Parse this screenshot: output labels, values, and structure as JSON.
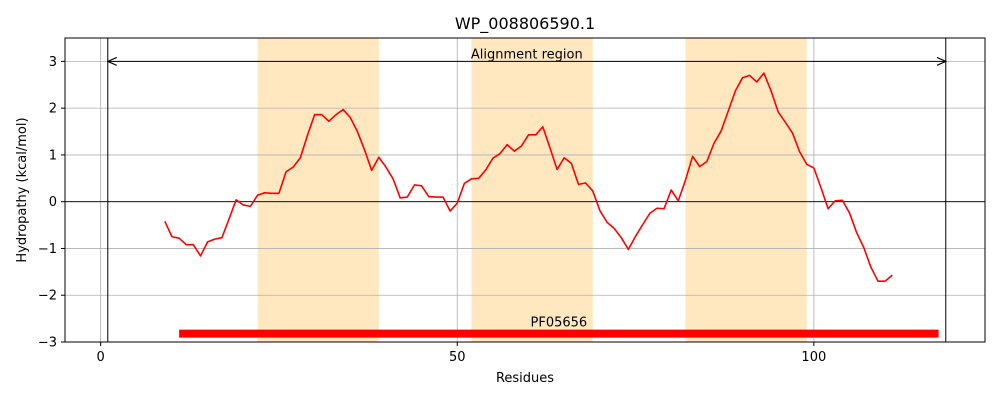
{
  "chart_data": {
    "type": "line",
    "title": "WP_008806590.1",
    "xlabel": "Residues",
    "ylabel": "Hydropathy (kcal/mol)",
    "xlim": [
      -5,
      124
    ],
    "ylim": [
      -3,
      3.5
    ],
    "xticks": [
      0,
      50,
      100
    ],
    "yticks": [
      -3,
      -2,
      -1,
      0,
      1,
      2,
      3
    ],
    "grid": true,
    "series": [
      {
        "color": "#ff0000",
        "x": [
          9,
          10,
          11,
          12,
          13,
          14,
          15,
          16,
          17,
          18,
          19,
          20,
          21,
          22,
          23,
          24,
          25,
          26,
          27,
          28,
          29,
          30,
          31,
          32,
          33,
          34,
          35,
          36,
          37,
          38,
          39,
          40,
          41,
          42,
          43,
          44,
          45,
          46,
          47,
          48,
          49,
          50,
          51,
          52,
          53,
          54,
          55,
          56,
          57,
          58,
          59,
          60,
          61,
          62,
          63,
          64,
          65,
          66,
          67,
          68,
          69,
          70,
          71,
          72,
          73,
          74,
          75,
          76,
          77,
          78,
          79,
          80,
          81,
          82,
          83,
          84,
          85,
          86,
          87,
          88,
          89,
          90,
          91,
          92,
          93,
          94,
          95,
          96,
          97,
          98,
          99,
          100,
          101,
          102,
          103,
          104,
          105,
          106,
          107,
          108,
          109,
          110,
          111
        ],
        "y": [
          -0.42,
          -0.75,
          -0.78,
          -0.92,
          -0.92,
          -1.16,
          -0.86,
          -0.8,
          -0.77,
          -0.37,
          0.04,
          -0.07,
          -0.1,
          0.14,
          0.19,
          0.18,
          0.18,
          0.64,
          0.74,
          0.94,
          1.42,
          1.86,
          1.86,
          1.72,
          1.86,
          1.97,
          1.8,
          1.5,
          1.11,
          0.67,
          0.95,
          0.74,
          0.49,
          0.08,
          0.1,
          0.36,
          0.34,
          0.11,
          0.1,
          0.1,
          -0.2,
          -0.03,
          0.39,
          0.49,
          0.5,
          0.68,
          0.93,
          1.03,
          1.22,
          1.08,
          1.19,
          1.43,
          1.43,
          1.6,
          1.15,
          0.69,
          0.94,
          0.82,
          0.37,
          0.4,
          0.23,
          -0.19,
          -0.44,
          -0.57,
          -0.77,
          -1.02,
          -0.74,
          -0.49,
          -0.25,
          -0.14,
          -0.15,
          0.25,
          0.02,
          0.46,
          0.97,
          0.75,
          0.86,
          1.25,
          1.51,
          1.94,
          2.37,
          2.65,
          2.7,
          2.56,
          2.75,
          2.37,
          1.92,
          1.7,
          1.47,
          1.07,
          0.8,
          0.72,
          0.3,
          -0.15,
          0.02,
          0.03,
          -0.24,
          -0.66,
          -0.98,
          -1.4,
          -1.7,
          -1.7,
          -1.57
        ]
      }
    ],
    "shaded_regions": [
      [
        22,
        39
      ],
      [
        52,
        69
      ],
      [
        82,
        99
      ]
    ],
    "shade_color": "#ffe7c0",
    "vertical_lines": [
      1,
      118.5
    ],
    "alignment_arrow": {
      "x_start": 1,
      "x_end": 118.5,
      "y": 3.0,
      "label": "Alignment region"
    },
    "domain_bar": {
      "x_start": 11,
      "x_end": 117.5,
      "y": -2.82,
      "color": "#ff0000",
      "label": "PF05656"
    }
  }
}
